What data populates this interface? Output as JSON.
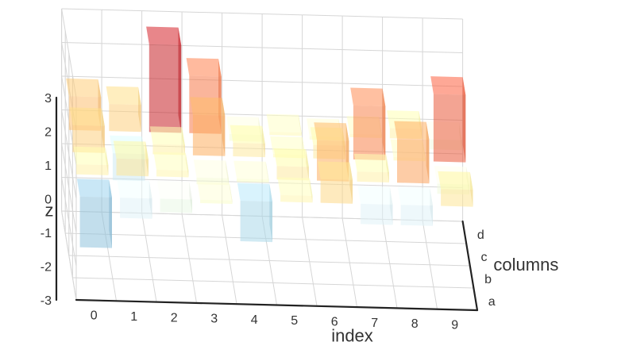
{
  "chart_data": {
    "type": "bar3d",
    "title": "",
    "xlabel": "index",
    "ylabel": "columns",
    "zlabel": "z",
    "x": [
      0,
      1,
      2,
      3,
      4,
      5,
      6,
      7,
      8,
      9
    ],
    "columns": [
      "a",
      "b",
      "c",
      "d"
    ],
    "zlim": [
      -3,
      3
    ],
    "zticks": [
      -3,
      -2,
      -1,
      0,
      1,
      2,
      3
    ],
    "grid": true,
    "colormap": [
      "#313695",
      "#4575b4",
      "#74add1",
      "#abd9e9",
      "#e0f3f8",
      "#ffffbf",
      "#fee090",
      "#fdae61",
      "#f46d43",
      "#d73027",
      "#a50026"
    ],
    "bar_opacity": 0.55,
    "series": [
      {
        "values": [
          -1.5,
          -0.6,
          -0.4,
          -0.1,
          -1.2,
          0.2,
          0.7,
          -0.6,
          -0.6,
          0.5
        ]
      },
      {
        "values": [
          0.3,
          0.5,
          0.2,
          -0.2,
          -0.1,
          0.4,
          1.2,
          0.3,
          1.3,
          -0.3
        ]
      },
      {
        "values": [
          0.8,
          -0.8,
          0.3,
          1.2,
          0.4,
          0.1,
          0.4,
          1.6,
          0.1,
          2.0
        ]
      },
      {
        "values": [
          1.0,
          0.8,
          2.6,
          1.7,
          -0.2,
          0.1,
          -0.1,
          0.1,
          0.3,
          -0.3
        ]
      }
    ]
  }
}
